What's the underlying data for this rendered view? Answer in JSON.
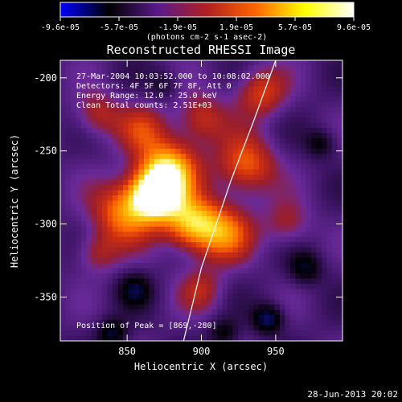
{
  "colorbar": {
    "tick_labels": [
      "-9.6e-05",
      "-5.7e-05",
      "-1.9e-05",
      "1.9e-05",
      "5.7e-05",
      "9.6e-05"
    ],
    "units_label": "(photons cm-2 s-1 asec-2)",
    "colormap": [
      "#0000ff",
      "#000000",
      "#5a1a8c",
      "#b02020",
      "#ff6600",
      "#ffff00",
      "#ffffff"
    ]
  },
  "chart_data": {
    "type": "heatmap",
    "title": "Reconstructed RHESSI Image",
    "xlabel": "Heliocentric X (arcsec)",
    "ylabel": "Heliocentric Y (arcsec)",
    "xlim": [
      805,
      995
    ],
    "ylim": [
      -380,
      -188
    ],
    "x_ticks": [
      850,
      900,
      950
    ],
    "y_ticks": [
      -200,
      -250,
      -300,
      -350
    ],
    "annotations": [
      "27-Mar-2004 10:03:52.000 to 10:08:02.000",
      "Detectors: 4F 5F 6F 7F 8F, Att 0",
      "Energy Range: 12.0 - 25.0 keV",
      "Clean    Total counts: 2.51E+03"
    ],
    "peak_label": "Position of Peak = [869,-280]",
    "peak": [
      869,
      -280
    ],
    "limb": [
      [
        888,
        -380
      ],
      [
        900,
        -330
      ],
      [
        910,
        -300
      ],
      [
        920,
        -270
      ],
      [
        935,
        -230
      ],
      [
        950,
        -188
      ]
    ],
    "blobs": [
      {
        "x": 869,
        "y": -280,
        "v": 1.0,
        "s": 12
      },
      {
        "x": 878,
        "y": -262,
        "v": 0.75,
        "s": 14
      },
      {
        "x": 848,
        "y": -292,
        "v": 0.6,
        "s": 15
      },
      {
        "x": 893,
        "y": -300,
        "v": 0.7,
        "s": 13
      },
      {
        "x": 915,
        "y": -306,
        "v": 0.55,
        "s": 14
      },
      {
        "x": 930,
        "y": -260,
        "v": 0.55,
        "s": 14
      },
      {
        "x": 940,
        "y": -210,
        "v": 0.45,
        "s": 12
      },
      {
        "x": 900,
        "y": -228,
        "v": 0.4,
        "s": 12
      },
      {
        "x": 860,
        "y": -235,
        "v": 0.35,
        "s": 12
      },
      {
        "x": 830,
        "y": -225,
        "v": 0.35,
        "s": 11
      },
      {
        "x": 830,
        "y": -320,
        "v": 0.3,
        "s": 10
      },
      {
        "x": 958,
        "y": -300,
        "v": 0.3,
        "s": 11
      },
      {
        "x": 900,
        "y": -345,
        "v": 0.3,
        "s": 11
      },
      {
        "x": 855,
        "y": -345,
        "v": -0.35,
        "s": 8
      },
      {
        "x": 945,
        "y": -365,
        "v": -0.5,
        "s": 7
      },
      {
        "x": 840,
        "y": -375,
        "v": -0.4,
        "s": 7
      },
      {
        "x": 980,
        "y": -245,
        "v": -0.3,
        "s": 7
      },
      {
        "x": 970,
        "y": -330,
        "v": -0.35,
        "s": 8
      },
      {
        "x": 875,
        "y": -205,
        "v": -0.2,
        "s": 7
      },
      {
        "x": 915,
        "y": -375,
        "v": -0.3,
        "s": 7
      }
    ]
  },
  "footer": {
    "timestamp": "28-Jun-2013 20:02"
  }
}
